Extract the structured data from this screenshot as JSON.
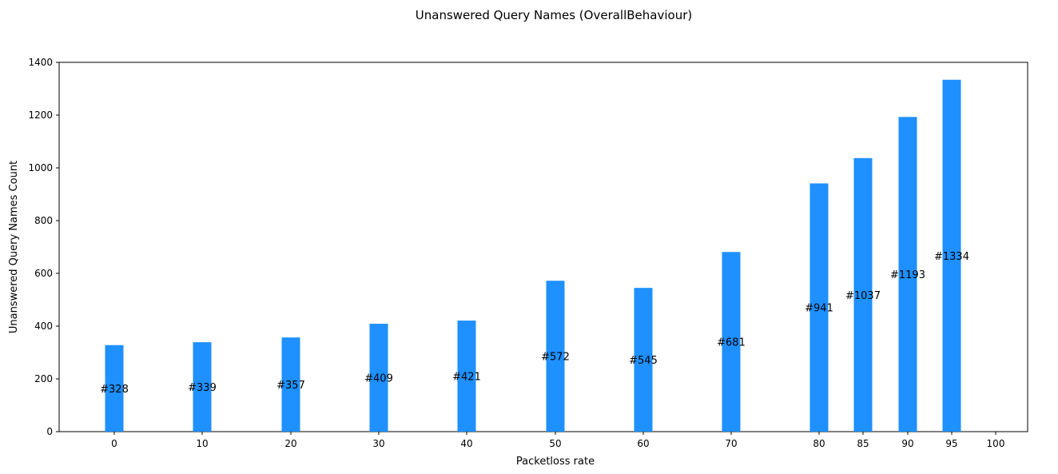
{
  "chart_data": {
    "type": "bar",
    "title": "Unanswered Query Names (OverallBehaviour)",
    "xlabel": "Packetloss rate",
    "ylabel": "Unanswered Query Names Count",
    "x": [
      0,
      10,
      20,
      30,
      40,
      50,
      60,
      70,
      80,
      85,
      90,
      95
    ],
    "values": [
      328,
      339,
      357,
      409,
      421,
      572,
      545,
      681,
      941,
      1037,
      1193,
      1334
    ],
    "data_labels": [
      "#328",
      "#339",
      "#357",
      "#409",
      "#421",
      "#572",
      "#545",
      "#681",
      "#941",
      "#1037",
      "#1193",
      "#1334"
    ],
    "xticks": [
      "0",
      "10",
      "20",
      "30",
      "40",
      "50",
      "60",
      "70",
      "80",
      "85",
      "90",
      "95",
      "100"
    ],
    "yticks": [
      "0",
      "200",
      "400",
      "600",
      "800",
      "1000",
      "1200",
      "1400"
    ],
    "ylim": [
      0,
      1400
    ],
    "grid": false,
    "bar_color": "#1e90ff"
  }
}
